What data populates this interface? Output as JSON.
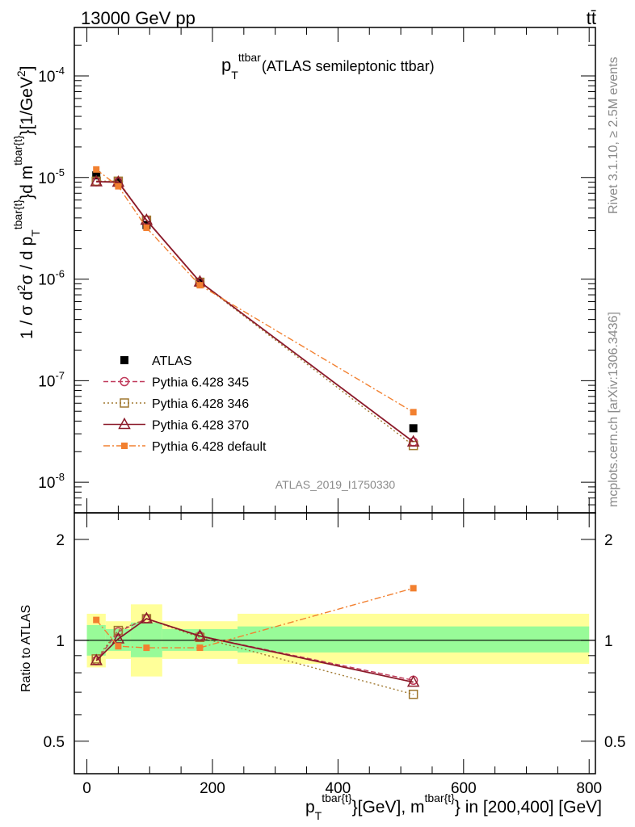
{
  "header": {
    "left": "13000 GeV pp",
    "right": "tt̄"
  },
  "plot_title": {
    "main": "p",
    "sub": "T",
    "sup": "ttbar",
    "rest": "(ATLAS semileptonic ttbar)"
  },
  "right_labels": {
    "rivet": "Rivet 3.1.10, ≥ 2.5M events",
    "mcplots": "mcplots.cern.ch [arXiv:1306.3436]"
  },
  "analysis_id": "ATLAS_2019_I1750330",
  "ylabel_main": "1 / σ d²σ / d p_T^{tbar{t}}d m^{tbar{t}}[1/GeV²]",
  "ylabel_ratio": "Ratio to ATLAS",
  "xlabel": {
    "p": "p",
    "T": "T",
    "sup1": "tbar{t}",
    "mid": "}[GeV], m",
    "sup2": "tbar{t}",
    "end": "} in [200,400] [GeV]"
  },
  "colors": {
    "data": "#000000",
    "p345": "#c0395a",
    "p346": "#a07830",
    "p370": "#8b1a2a",
    "pdefault": "#f28030",
    "band_inner": "#98fb98",
    "band_outer": "#ffff99"
  },
  "chart_data": [
    {
      "type": "line",
      "title": "p_T^ttbar (ATLAS semileptonic ttbar)",
      "xlim": [
        -20,
        810
      ],
      "ylim": [
        5e-09,
        0.0003
      ],
      "log_y": true,
      "x_ticks": [
        0,
        200,
        400,
        600,
        800
      ],
      "y_tick_labels": [
        "10^-8",
        "10^-7",
        "10^-6",
        "10^-5",
        "10^-4"
      ],
      "legend_position": "left-middle",
      "series": [
        {
          "name": "ATLAS",
          "style": "data",
          "x": [
            15,
            50,
            95,
            180,
            520
          ],
          "y": [
            1.05e-05,
            9e-06,
            3.4e-06,
            9.2e-07,
            3.4e-08
          ]
        },
        {
          "name": "Pythia 6.428 345",
          "style": "p345",
          "x": [
            15,
            50,
            95,
            180,
            520
          ],
          "y": [
            9.1e-06,
            9.1e-06,
            3.8e-06,
            9.4e-07,
            2.5e-08
          ]
        },
        {
          "name": "Pythia 6.428 346",
          "style": "p346",
          "x": [
            15,
            50,
            95,
            180,
            520
          ],
          "y": [
            9.2e-06,
            9.2e-06,
            3.8e-06,
            9.3e-07,
            2.3e-08
          ]
        },
        {
          "name": "Pythia 6.428 370",
          "style": "p370",
          "x": [
            15,
            50,
            95,
            180,
            520
          ],
          "y": [
            9.1e-06,
            9e-06,
            3.8e-06,
            9.4e-07,
            2.5e-08
          ]
        },
        {
          "name": "Pythia 6.428 default",
          "style": "pdefault",
          "x": [
            15,
            50,
            95,
            180,
            520
          ],
          "y": [
            1.2e-05,
            8.2e-06,
            3.2e-06,
            8.7e-07,
            4.9e-08
          ]
        }
      ]
    },
    {
      "type": "line",
      "ylabel": "Ratio to ATLAS",
      "xlim": [
        -20,
        810
      ],
      "ylim": [
        0.4,
        2.4
      ],
      "log_y": true,
      "y_ticks": [
        0.5,
        1,
        2
      ],
      "x_ticks": [
        0,
        200,
        400,
        600,
        800
      ],
      "bands": [
        {
          "x_lo": 0,
          "x_hi": 30,
          "inner": [
            0.9,
            1.11
          ],
          "outer": [
            0.83,
            1.2
          ]
        },
        {
          "x_lo": 30,
          "x_hi": 70,
          "inner": [
            0.93,
            1.08
          ],
          "outer": [
            0.88,
            1.14
          ]
        },
        {
          "x_lo": 70,
          "x_hi": 120,
          "inner": [
            0.89,
            1.13
          ],
          "outer": [
            0.78,
            1.28
          ]
        },
        {
          "x_lo": 120,
          "x_hi": 240,
          "inner": [
            0.93,
            1.08
          ],
          "outer": [
            0.88,
            1.14
          ]
        },
        {
          "x_lo": 240,
          "x_hi": 800,
          "inner": [
            0.92,
            1.1
          ],
          "outer": [
            0.85,
            1.2
          ]
        }
      ],
      "series": [
        {
          "name": "Pythia 6.428 345",
          "style": "p345",
          "x": [
            15,
            50,
            95,
            180,
            520
          ],
          "y": [
            0.87,
            1.06,
            1.16,
            1.03,
            0.76
          ]
        },
        {
          "name": "Pythia 6.428 346",
          "style": "p346",
          "x": [
            15,
            50,
            95,
            180,
            520
          ],
          "y": [
            0.88,
            1.07,
            1.16,
            1.02,
            0.69
          ]
        },
        {
          "name": "Pythia 6.428 370",
          "style": "p370",
          "x": [
            15,
            50,
            95,
            180,
            520
          ],
          "y": [
            0.87,
            1.01,
            1.16,
            1.03,
            0.75
          ]
        },
        {
          "name": "Pythia 6.428 default",
          "style": "pdefault",
          "x": [
            15,
            50,
            95,
            180,
            520
          ],
          "y": [
            1.15,
            0.96,
            0.95,
            0.95,
            1.43
          ]
        }
      ]
    }
  ]
}
